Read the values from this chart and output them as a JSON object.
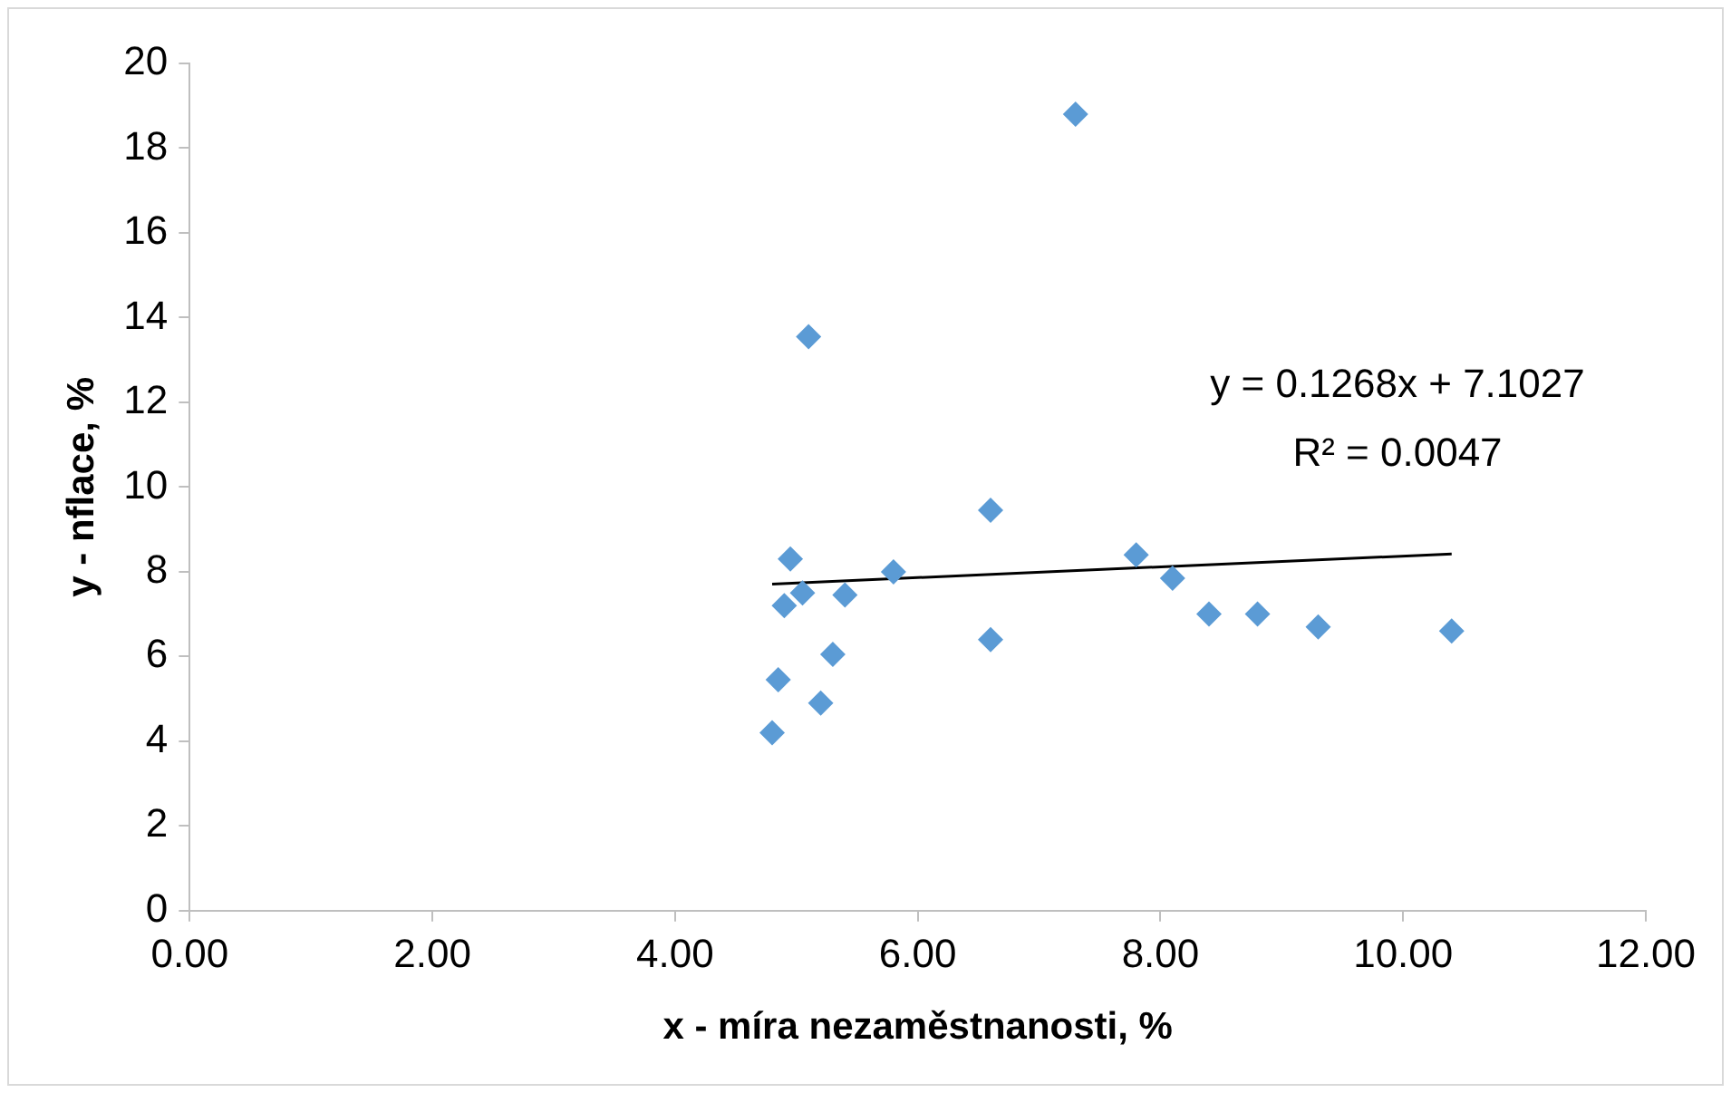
{
  "chart_data": {
    "type": "scatter",
    "xlabel": "x - míra nezaměstnanosti, %",
    "ylabel": "y - nflace, %",
    "xlim": [
      0,
      12
    ],
    "xticks": [
      {
        "value": 0,
        "label": "0.00"
      },
      {
        "value": 2,
        "label": "2.00"
      },
      {
        "value": 4,
        "label": "4.00"
      },
      {
        "value": 6,
        "label": "6.00"
      },
      {
        "value": 8,
        "label": "8.00"
      },
      {
        "value": 10,
        "label": "10.00"
      },
      {
        "value": 12,
        "label": "12.00"
      }
    ],
    "ylim": [
      0,
      20
    ],
    "yticks": [
      0,
      2,
      4,
      6,
      8,
      10,
      12,
      14,
      16,
      18,
      20
    ],
    "grid": false,
    "legend": false,
    "marker": "diamond",
    "series": [
      {
        "type": "scatter",
        "color": "#5b9bd5",
        "x": [
          4.8,
          4.85,
          4.9,
          4.95,
          5.05,
          5.2,
          5.3,
          5.4,
          5.8,
          6.6,
          6.6,
          5.1,
          7.3,
          7.8,
          8.1,
          8.4,
          8.8,
          9.3,
          10.4
        ],
        "values": [
          4.2,
          5.45,
          7.2,
          8.3,
          7.5,
          4.9,
          6.05,
          7.45,
          8.0,
          9.45,
          6.4,
          13.55,
          18.8,
          8.4,
          7.85,
          7.0,
          7.0,
          6.7,
          6.6
        ]
      },
      {
        "type": "line",
        "color": "#000000",
        "marker": "none",
        "line_style": "solid",
        "x": [
          4.8,
          10.4
        ],
        "values": [
          7.71,
          8.42
        ]
      }
    ],
    "annotations": [
      "y = 0.1268x + 7.1027",
      "R² = 0.0047"
    ]
  }
}
